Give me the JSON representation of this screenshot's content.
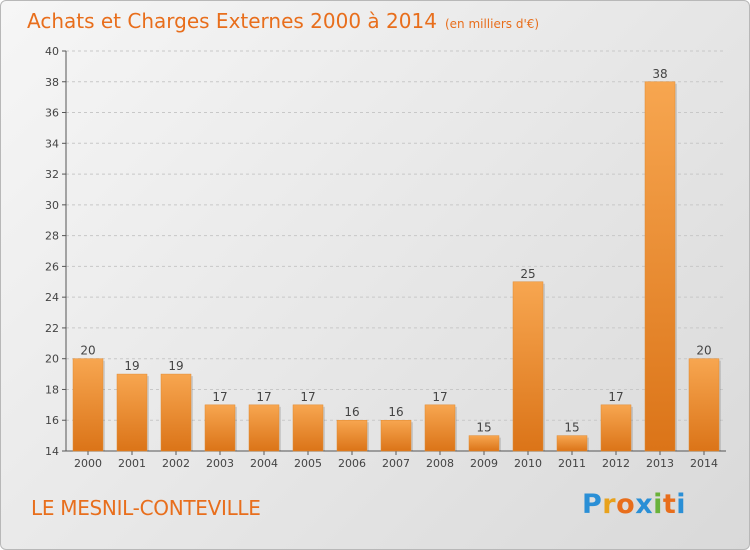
{
  "title": {
    "main": "Achats et Charges Externes 2000 à 2014",
    "unit": "(en milliers d'€)"
  },
  "commune": "LE MESNIL-CONTEVILLE",
  "logo": {
    "letters": [
      "P",
      "r",
      "o",
      "x",
      "i",
      "t",
      "i"
    ],
    "colors": [
      "#2a8fd6",
      "#e8a21c",
      "#e86e1c",
      "#2a8fd6",
      "#6ab23a",
      "#e86e1c",
      "#2a8fd6"
    ]
  },
  "chart_data": {
    "type": "bar",
    "title": "Achats et Charges Externes 2000 à 2014",
    "categories": [
      "2000",
      "2001",
      "2002",
      "2003",
      "2004",
      "2005",
      "2006",
      "2007",
      "2008",
      "2009",
      "2010",
      "2011",
      "2012",
      "2013",
      "2014"
    ],
    "values": [
      20,
      19,
      19,
      17,
      17,
      17,
      16,
      16,
      17,
      15,
      25,
      15,
      17,
      38,
      20
    ],
    "ylim": [
      14,
      40
    ],
    "yticks": [
      14,
      16,
      18,
      20,
      22,
      24,
      26,
      28,
      30,
      32,
      34,
      36,
      38,
      40
    ],
    "grid": true,
    "bar_color": "#f5a04b",
    "xlabel": "",
    "ylabel": ""
  }
}
